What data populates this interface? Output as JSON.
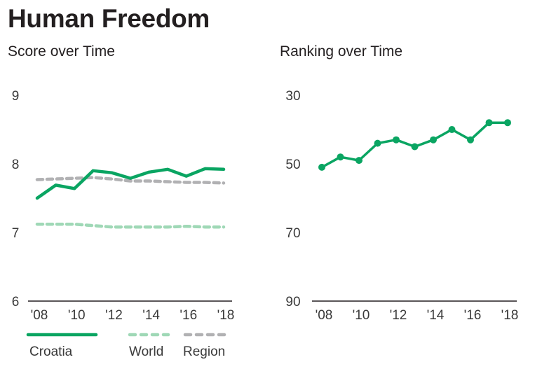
{
  "title": "Human Freedom",
  "colors": {
    "croatia": "#0aa562",
    "world": "#9fd8b6",
    "region": "#b1b1b3",
    "axis": "#231f20"
  },
  "chart_data": [
    {
      "type": "line",
      "title": "Score over Time",
      "xlabel": "",
      "ylabel": "",
      "x": [
        2008,
        2009,
        2010,
        2011,
        2012,
        2013,
        2014,
        2015,
        2016,
        2017,
        2018
      ],
      "x_tick_values": [
        2008,
        2010,
        2012,
        2014,
        2016,
        2018
      ],
      "x_tick_labels": [
        "'08",
        "'10",
        "'12",
        "'14",
        "'16",
        "'18"
      ],
      "y_tick_values": [
        9,
        8,
        7,
        6
      ],
      "y_tick_labels": [
        "9",
        "8",
        "7",
        "6"
      ],
      "ylim": [
        6,
        9
      ],
      "grid": false,
      "legend_position": "bottom",
      "series": [
        {
          "name": "Croatia",
          "key": "croatia",
          "style": "solid",
          "values": [
            7.5,
            7.69,
            7.64,
            7.9,
            7.87,
            7.79,
            7.88,
            7.92,
            7.82,
            7.93,
            7.92
          ]
        },
        {
          "name": "World",
          "key": "world",
          "style": "dashed",
          "values": [
            7.12,
            7.12,
            7.12,
            7.1,
            7.08,
            7.08,
            7.08,
            7.08,
            7.09,
            7.08,
            7.08
          ]
        },
        {
          "name": "Region",
          "key": "region",
          "style": "dashed",
          "values": [
            7.77,
            7.78,
            7.79,
            7.8,
            7.78,
            7.75,
            7.75,
            7.74,
            7.73,
            7.73,
            7.72
          ]
        }
      ]
    },
    {
      "type": "line",
      "title": "Ranking over Time",
      "xlabel": "",
      "ylabel": "",
      "x": [
        2008,
        2009,
        2010,
        2011,
        2012,
        2013,
        2014,
        2015,
        2016,
        2017,
        2018
      ],
      "x_tick_values": [
        2008,
        2010,
        2012,
        2014,
        2016,
        2018
      ],
      "x_tick_labels": [
        "'08",
        "'10",
        "'12",
        "'14",
        "'16",
        "'18"
      ],
      "y_tick_values": [
        30,
        50,
        70,
        90
      ],
      "y_tick_labels": [
        "30",
        "50",
        "70",
        "90"
      ],
      "ylim": [
        90,
        30
      ],
      "y_inverted": true,
      "grid": false,
      "series": [
        {
          "name": "Croatia",
          "key": "croatia",
          "style": "solid-markers",
          "values": [
            51,
            48,
            49,
            44,
            43,
            45,
            43,
            40,
            43,
            38,
            38
          ]
        }
      ]
    }
  ],
  "legend": [
    {
      "label": "Croatia",
      "key": "croatia",
      "style": "solid"
    },
    {
      "label": "World",
      "key": "world",
      "style": "dashed"
    },
    {
      "label": "Region",
      "key": "region",
      "style": "dashed"
    }
  ]
}
